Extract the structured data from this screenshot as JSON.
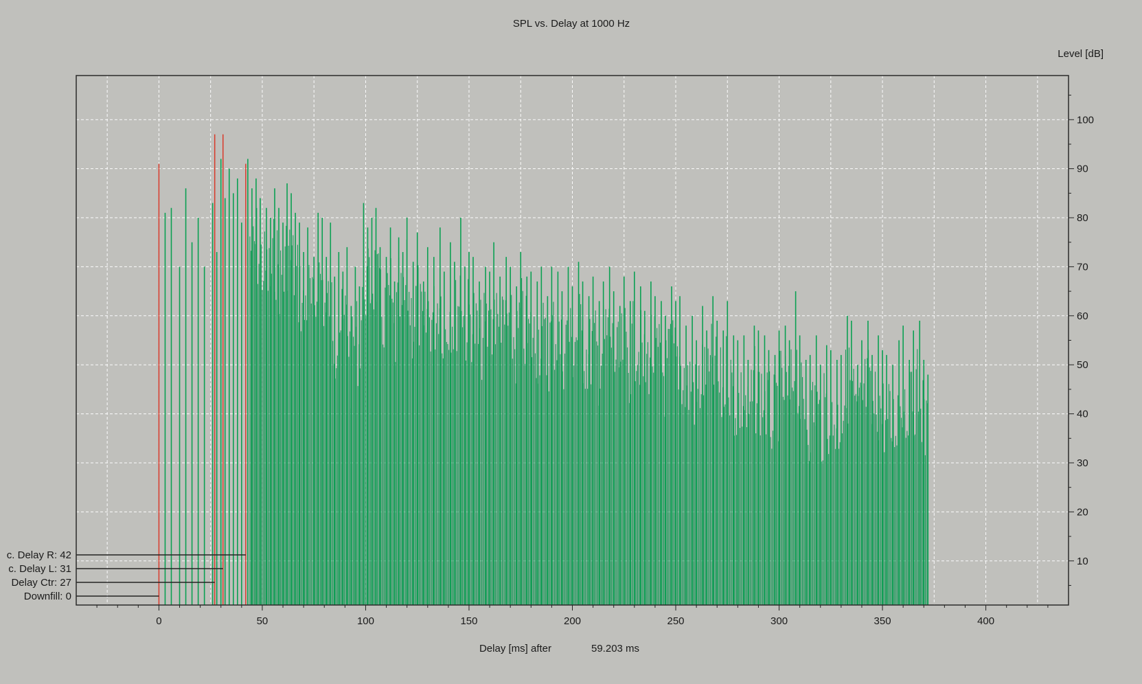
{
  "chart_data": {
    "type": "bar",
    "title": "SPL vs. Delay at 1000 Hz",
    "xlabel": "Delay [ms] after",
    "xlabel_value": "59.203 ms",
    "ylabel": "Level [dB]",
    "xlim": [
      -40,
      440
    ],
    "ylim": [
      1,
      109
    ],
    "x_ticks": [
      "0",
      "50",
      "100",
      "150",
      "200",
      "250",
      "300",
      "350",
      "400"
    ],
    "y_ticks": [
      "10",
      "20",
      "30",
      "40",
      "50",
      "60",
      "70",
      "80",
      "90",
      "100"
    ],
    "y_axis_side": "right",
    "grid": true,
    "colors": {
      "background": "#c0c0bc",
      "bars": "#00904a",
      "markers": "#d83a2a",
      "grid": "#ffffff"
    },
    "markers": [
      {
        "label": "Downfill: 0",
        "x": 0,
        "level": 91
      },
      {
        "label": "Delay Ctr: 27",
        "x": 27,
        "level": 97
      },
      {
        "label": "c. Delay L: 31",
        "x": 31,
        "level": 97
      },
      {
        "label": "c. Delay R: 42",
        "x": 42,
        "level": 91
      }
    ],
    "series": [
      {
        "envelope": {
          "description_points_x": [
            3,
            10,
            20,
            40,
            60,
            100,
            150,
            200,
            250,
            300,
            350,
            372
          ],
          "description_points_level": [
            82,
            84,
            86,
            91,
            86,
            83,
            72,
            68,
            64,
            60,
            56,
            48
          ]
        },
        "values": [
          [
            3,
            81
          ],
          [
            6,
            82
          ],
          [
            10,
            70
          ],
          [
            13,
            86
          ],
          [
            16,
            75
          ],
          [
            19,
            80
          ],
          [
            22,
            70
          ],
          [
            26,
            83
          ],
          [
            28,
            73
          ],
          [
            30,
            92
          ],
          [
            32,
            84
          ],
          [
            34,
            90
          ],
          [
            36,
            85
          ],
          [
            38,
            88
          ],
          [
            40,
            79
          ],
          [
            43,
            92
          ],
          [
            45,
            86
          ],
          [
            47,
            88
          ],
          [
            49,
            84
          ],
          [
            52,
            82
          ],
          [
            54,
            80
          ],
          [
            56,
            86
          ],
          [
            58,
            82
          ],
          [
            60,
            79
          ],
          [
            62,
            87
          ],
          [
            64,
            85
          ],
          [
            66,
            81
          ],
          [
            68,
            79
          ],
          [
            70,
            73
          ],
          [
            72,
            78
          ],
          [
            75,
            72
          ],
          [
            77,
            81
          ],
          [
            79,
            80
          ],
          [
            81,
            72
          ],
          [
            83,
            79
          ],
          [
            85,
            68
          ],
          [
            87,
            73
          ],
          [
            89,
            69
          ],
          [
            91,
            74
          ],
          [
            93,
            62
          ],
          [
            95,
            70
          ],
          [
            97,
            66
          ],
          [
            99,
            83
          ],
          [
            101,
            78
          ],
          [
            103,
            80
          ],
          [
            105,
            82
          ],
          [
            107,
            74
          ],
          [
            110,
            72
          ],
          [
            112,
            78
          ],
          [
            114,
            67
          ],
          [
            116,
            76
          ],
          [
            118,
            73
          ],
          [
            120,
            80
          ],
          [
            123,
            71
          ],
          [
            125,
            77
          ],
          [
            128,
            67
          ],
          [
            130,
            74
          ],
          [
            133,
            72
          ],
          [
            136,
            78
          ],
          [
            138,
            69
          ],
          [
            141,
            75
          ],
          [
            143,
            71
          ],
          [
            146,
            80
          ],
          [
            148,
            70
          ],
          [
            150,
            73
          ],
          [
            152,
            72
          ],
          [
            155,
            67
          ],
          [
            158,
            70
          ],
          [
            160,
            69
          ],
          [
            162,
            75
          ],
          [
            165,
            68
          ],
          [
            168,
            72
          ],
          [
            170,
            70
          ],
          [
            173,
            66
          ],
          [
            175,
            73
          ],
          [
            178,
            68
          ],
          [
            180,
            69
          ],
          [
            183,
            67
          ],
          [
            185,
            70
          ],
          [
            188,
            64
          ],
          [
            190,
            70
          ],
          [
            193,
            69
          ],
          [
            195,
            65
          ],
          [
            198,
            70
          ],
          [
            200,
            66
          ],
          [
            203,
            71
          ],
          [
            205,
            67
          ],
          [
            208,
            64
          ],
          [
            210,
            68
          ],
          [
            213,
            63
          ],
          [
            215,
            67
          ],
          [
            218,
            70
          ],
          [
            220,
            65
          ],
          [
            223,
            62
          ],
          [
            225,
            68
          ],
          [
            228,
            63
          ],
          [
            230,
            69
          ],
          [
            233,
            66
          ],
          [
            235,
            61
          ],
          [
            238,
            67
          ],
          [
            240,
            64
          ],
          [
            243,
            63
          ],
          [
            245,
            60
          ],
          [
            248,
            66
          ],
          [
            250,
            63
          ],
          [
            252,
            64
          ],
          [
            255,
            58
          ],
          [
            258,
            60
          ],
          [
            260,
            55
          ],
          [
            263,
            62
          ],
          [
            265,
            57
          ],
          [
            268,
            64
          ],
          [
            270,
            59
          ],
          [
            273,
            57
          ],
          [
            275,
            63
          ],
          [
            278,
            56
          ],
          [
            280,
            55
          ],
          [
            283,
            56
          ],
          [
            285,
            51
          ],
          [
            288,
            58
          ],
          [
            290,
            57
          ],
          [
            293,
            56
          ],
          [
            295,
            53
          ],
          [
            298,
            52
          ],
          [
            300,
            57
          ],
          [
            303,
            58
          ],
          [
            305,
            55
          ],
          [
            308,
            65
          ],
          [
            310,
            56
          ],
          [
            313,
            51
          ],
          [
            315,
            52
          ],
          [
            318,
            56
          ],
          [
            320,
            50
          ],
          [
            323,
            54
          ],
          [
            325,
            53
          ],
          [
            328,
            51
          ],
          [
            330,
            52
          ],
          [
            333,
            60
          ],
          [
            335,
            59
          ],
          [
            338,
            50
          ],
          [
            340,
            55
          ],
          [
            343,
            59
          ],
          [
            345,
            52
          ],
          [
            348,
            56
          ],
          [
            350,
            53
          ],
          [
            352,
            52
          ],
          [
            355,
            50
          ],
          [
            358,
            55
          ],
          [
            360,
            58
          ],
          [
            363,
            51
          ],
          [
            365,
            57
          ],
          [
            368,
            59
          ],
          [
            370,
            51
          ],
          [
            372,
            48
          ]
        ]
      }
    ]
  }
}
